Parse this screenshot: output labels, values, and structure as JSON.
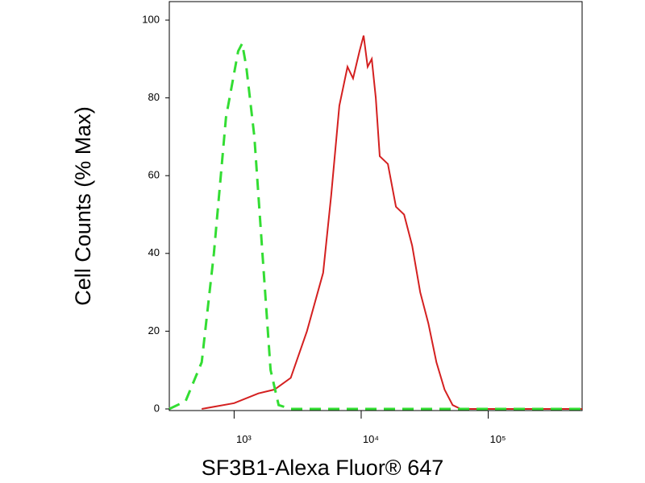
{
  "chart_data": {
    "type": "line",
    "xlabel": "SF3B1-Alexa Fluor® 647",
    "ylabel": "Cell Counts (% Max)",
    "xscale": "log",
    "xlim": [
      309,
      548000
    ],
    "ylim": [
      0,
      105
    ],
    "xticks": [
      {
        "value": 1000,
        "label": "10³"
      },
      {
        "value": 10000,
        "label": "10⁴"
      },
      {
        "value": 100000,
        "label": "10⁵"
      }
    ],
    "yticks": [
      0,
      20,
      40,
      60,
      80,
      100
    ],
    "series": [
      {
        "color": "#d42020",
        "dash": false,
        "x": [
          556,
          1000,
          1553,
          2081,
          2791,
          3743,
          5020,
          5810,
          6730,
          7800,
          8630,
          9700,
          10450,
          11250,
          12110,
          13030,
          14000,
          16220,
          18790,
          21770,
          25180,
          29170,
          33800,
          39090,
          45290,
          52480,
          60700,
          548000
        ],
        "values": [
          0,
          1.5,
          4,
          5,
          8,
          20,
          35,
          55,
          78,
          88,
          85,
          92,
          96,
          88,
          90,
          80,
          65,
          63,
          52,
          50,
          42,
          30,
          22,
          12,
          5,
          1,
          0,
          0
        ]
      },
      {
        "color": "#33dd33",
        "dash": true,
        "x": [
          309,
          415,
          556,
          693,
          863,
          1076,
          1158,
          1247,
          1443,
          1670,
          1935,
          2240,
          2791,
          548000
        ],
        "values": [
          0,
          2,
          12,
          40,
          75,
          92,
          94,
          88,
          70,
          40,
          10,
          1,
          0,
          0
        ]
      }
    ]
  }
}
